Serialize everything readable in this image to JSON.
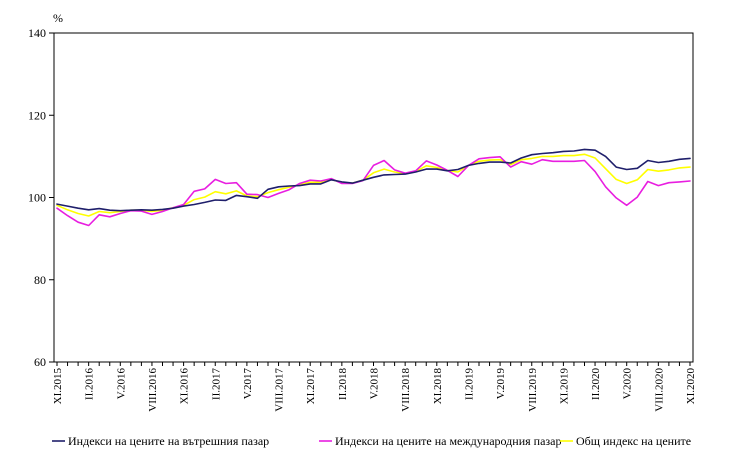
{
  "chart_data": {
    "type": "line",
    "ylabel": "%",
    "ylim": [
      60,
      140
    ],
    "yticks": [
      "60",
      "80",
      "100",
      "120",
      "140"
    ],
    "grid": false,
    "legend_position": "bottom",
    "x": [
      "XI.2015",
      "XII.2015",
      "I.2016",
      "II.2016",
      "III.2016",
      "IV.2016",
      "V.2016",
      "VI.2016",
      "VII.2016",
      "VIII.2016",
      "IX.2016",
      "X.2016",
      "XI.2016",
      "XII.2016",
      "I.2017",
      "II.2017",
      "III.2017",
      "IV.2017",
      "V.2017",
      "VI.2017",
      "VII.2017",
      "VIII.2017",
      "IX.2017",
      "X.2017",
      "XI.2017",
      "XII.2017",
      "I.2018",
      "II.2018",
      "III.2018",
      "IV.2018",
      "V.2018",
      "VI.2018",
      "VII.2018",
      "VIII.2018",
      "IX.2018",
      "X.2018",
      "XI.2018",
      "XII.2018",
      "I.2019",
      "II.2019",
      "III.2019",
      "IV.2019",
      "V.2019",
      "VI.2019",
      "VII.2019",
      "VIII.2019",
      "IX.2019",
      "X.2019",
      "XI.2019",
      "XII.2019",
      "I.2020",
      "II.2020",
      "III.2020",
      "IV.2020",
      "V.2020",
      "VI.2020",
      "VII.2020",
      "VIII.2020",
      "IX.2020",
      "X.2020",
      "XI.2020"
    ],
    "tick_labels": [
      "XI.2015",
      "II.2016",
      "V.2016",
      "VIII.2016",
      "XI.2016",
      "II.2017",
      "V.2017",
      "VIII.2017",
      "XI.2017",
      "II.2018",
      "V.2018",
      "VIII.2018",
      "XI.2018",
      "II.2019",
      "V.2019",
      "VIII.2019",
      "XI.2019",
      "II.2020",
      "V.2020",
      "VIII.2020",
      "XI.2020"
    ],
    "series": [
      {
        "name": "Индекси на цените на вътрешния пазар",
        "color": "#1f1f6b",
        "values": [
          98.4,
          97.9,
          97.4,
          97.0,
          97.3,
          96.9,
          96.8,
          96.9,
          97.0,
          96.9,
          97.1,
          97.4,
          97.9,
          98.3,
          98.8,
          99.4,
          99.3,
          100.5,
          100.2,
          99.8,
          102.0,
          102.6,
          102.8,
          102.9,
          103.3,
          103.3,
          104.3,
          103.8,
          103.5,
          104.2,
          104.9,
          105.5,
          105.6,
          105.7,
          106.2,
          106.9,
          106.9,
          106.5,
          106.8,
          107.8,
          108.3,
          108.6,
          108.6,
          108.4,
          109.6,
          110.4,
          110.7,
          110.9,
          111.2,
          111.3,
          111.7,
          111.5,
          110.0,
          107.4,
          106.8,
          107.1,
          109.0,
          108.5,
          108.8,
          109.3,
          109.5
        ]
      },
      {
        "name": "Индекси на цените на международния пазар",
        "color": "#e81ee0",
        "values": [
          97.4,
          95.6,
          94.0,
          93.2,
          95.8,
          95.3,
          96.1,
          96.8,
          96.7,
          95.9,
          96.6,
          97.5,
          98.3,
          101.5,
          102.1,
          104.4,
          103.4,
          103.6,
          100.8,
          100.7,
          100.0,
          101.0,
          101.9,
          103.4,
          104.2,
          104.0,
          104.6,
          103.4,
          103.4,
          104.1,
          107.8,
          109.0,
          106.7,
          105.9,
          106.5,
          108.9,
          107.9,
          106.6,
          105.1,
          107.8,
          109.4,
          109.7,
          109.9,
          107.4,
          108.7,
          108.1,
          109.2,
          108.8,
          108.8,
          108.8,
          109.0,
          106.3,
          102.6,
          99.9,
          98.1,
          100.1,
          103.9,
          102.9,
          103.6,
          103.8,
          104.0
        ]
      },
      {
        "name": "Общ индекс на цените",
        "color": "#ffff00",
        "values": [
          98.1,
          97.0,
          96.1,
          95.5,
          96.6,
          96.3,
          96.6,
          96.9,
          96.9,
          96.6,
          96.9,
          97.5,
          98.1,
          99.5,
          100.1,
          101.4,
          100.9,
          101.6,
          100.4,
          100.2,
          101.2,
          101.9,
          102.5,
          103.1,
          103.7,
          103.7,
          104.4,
          103.6,
          103.5,
          104.2,
          106.0,
          106.9,
          106.2,
          105.8,
          106.3,
          107.7,
          107.3,
          106.6,
          106.2,
          107.8,
          108.8,
          109.1,
          109.2,
          108.0,
          109.2,
          109.5,
          110.0,
          110.0,
          110.2,
          110.2,
          110.5,
          109.6,
          107.0,
          104.4,
          103.4,
          104.3,
          106.8,
          106.4,
          106.7,
          107.2,
          107.4
        ]
      }
    ]
  }
}
